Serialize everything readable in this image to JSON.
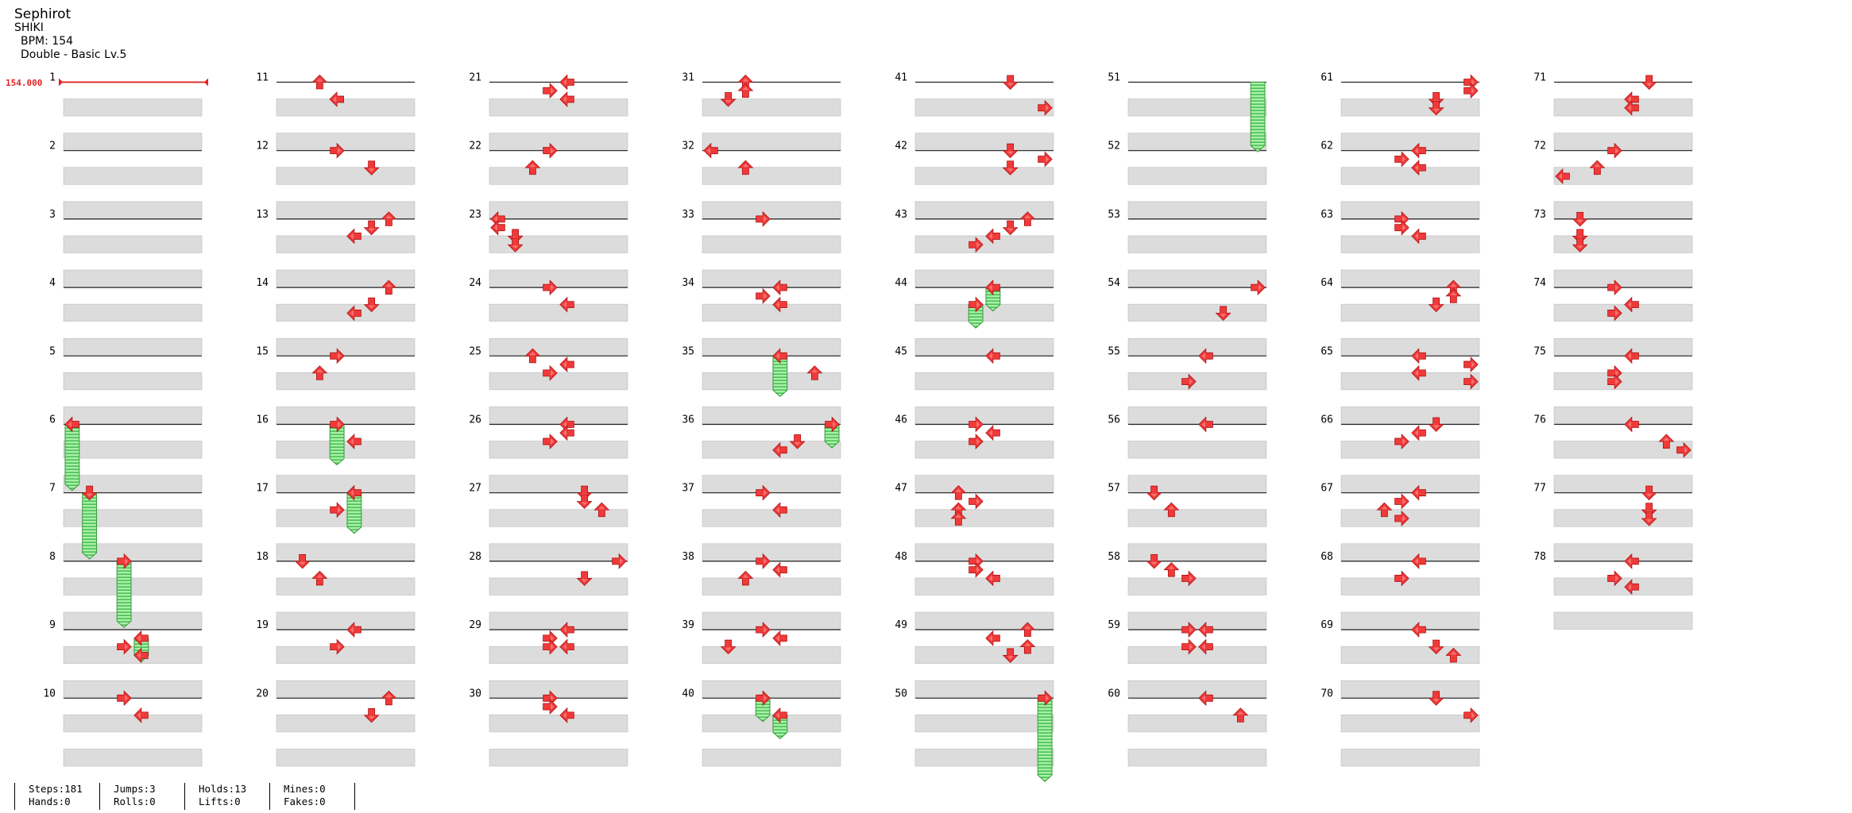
{
  "song": {
    "title": "Sephirot",
    "artist": "SHIKI",
    "bpm_text": "BPM: 154",
    "difficulty": "Double - Basic  Lv.5"
  },
  "bpm_marker": {
    "label": "154.000",
    "measure": 1
  },
  "colors": {
    "arrow": "#f03a3a",
    "arrow_outline": "#b01010",
    "hold_fill": "#a8f0a8",
    "hold_stripe": "#22aa33",
    "hold_border": "#3a9a3a",
    "row_dark": "#dcdcdc",
    "bpm_line": "#e62020"
  },
  "chart_data": {
    "type": "step-chart",
    "mode": "dance-double",
    "columns": 8,
    "total_measures": 78,
    "measures_per_column": 10,
    "rows_per_measure": 4,
    "lanes": [
      "left",
      "down",
      "up",
      "right"
    ],
    "notes": [
      {
        "m": 6,
        "r": 0,
        "lane": 0,
        "dir": "left",
        "hold": 1.75
      },
      {
        "m": 7,
        "r": 0,
        "lane": 1,
        "dir": "down",
        "hold": 1.75
      },
      {
        "m": 8,
        "r": 0,
        "lane": 3,
        "dir": "right",
        "hold": 1.75
      },
      {
        "m": 9,
        "r": 0.5,
        "lane": 4,
        "dir": "left",
        "hold": 0.5
      },
      {
        "m": 9,
        "r": 1,
        "lane": 3,
        "dir": "right"
      },
      {
        "m": 9,
        "r": 1.5,
        "lane": 4,
        "dir": "left"
      },
      {
        "m": 10,
        "r": 0,
        "lane": 3,
        "dir": "right"
      },
      {
        "m": 10,
        "r": 1,
        "lane": 4,
        "dir": "left"
      },
      {
        "m": 11,
        "r": 0,
        "lane": 2,
        "dir": "up"
      },
      {
        "m": 11,
        "r": 1,
        "lane": 3,
        "dir": "left"
      },
      {
        "m": 12,
        "r": 0,
        "lane": 3,
        "dir": "right"
      },
      {
        "m": 12,
        "r": 1,
        "lane": 5,
        "dir": "down"
      },
      {
        "m": 13,
        "r": 0,
        "lane": 6,
        "dir": "up"
      },
      {
        "m": 13,
        "r": 0.5,
        "lane": 5,
        "dir": "down"
      },
      {
        "m": 13,
        "r": 1,
        "lane": 4,
        "dir": "left"
      },
      {
        "m": 14,
        "r": 0,
        "lane": 6,
        "dir": "up"
      },
      {
        "m": 14,
        "r": 1,
        "lane": 5,
        "dir": "down"
      },
      {
        "m": 14,
        "r": 1.5,
        "lane": 4,
        "dir": "left"
      },
      {
        "m": 15,
        "r": 0,
        "lane": 3,
        "dir": "right"
      },
      {
        "m": 15,
        "r": 1,
        "lane": 2,
        "dir": "up"
      },
      {
        "m": 16,
        "r": 0,
        "lane": 3,
        "dir": "right",
        "hold": 1
      },
      {
        "m": 16,
        "r": 1,
        "lane": 4,
        "dir": "left"
      },
      {
        "m": 17,
        "r": 0,
        "lane": 4,
        "dir": "left",
        "hold": 1
      },
      {
        "m": 17,
        "r": 1,
        "lane": 3,
        "dir": "right"
      },
      {
        "m": 18,
        "r": 0,
        "lane": 1,
        "dir": "down"
      },
      {
        "m": 18,
        "r": 1,
        "lane": 2,
        "dir": "up"
      },
      {
        "m": 19,
        "r": 0,
        "lane": 4,
        "dir": "left"
      },
      {
        "m": 19,
        "r": 1,
        "lane": 3,
        "dir": "right"
      },
      {
        "m": 20,
        "r": 0,
        "lane": 6,
        "dir": "up"
      },
      {
        "m": 20,
        "r": 1,
        "lane": 5,
        "dir": "down"
      },
      {
        "m": 21,
        "r": 0,
        "lane": 4,
        "dir": "left"
      },
      {
        "m": 21,
        "r": 0.5,
        "lane": 3,
        "dir": "right"
      },
      {
        "m": 21,
        "r": 1,
        "lane": 4,
        "dir": "left"
      },
      {
        "m": 22,
        "r": 0,
        "lane": 3,
        "dir": "right"
      },
      {
        "m": 22,
        "r": 1,
        "lane": 2,
        "dir": "up"
      },
      {
        "m": 23,
        "r": 0,
        "lane": 0,
        "dir": "left"
      },
      {
        "m": 23,
        "r": 0.5,
        "lane": 0,
        "dir": "left"
      },
      {
        "m": 23,
        "r": 1,
        "lane": 1,
        "dir": "down"
      },
      {
        "m": 23,
        "r": 1.5,
        "lane": 1,
        "dir": "down"
      },
      {
        "m": 24,
        "r": 0,
        "lane": 3,
        "dir": "right"
      },
      {
        "m": 24,
        "r": 1,
        "lane": 4,
        "dir": "left"
      },
      {
        "m": 25,
        "r": 0,
        "lane": 2,
        "dir": "up"
      },
      {
        "m": 25,
        "r": 0.5,
        "lane": 4,
        "dir": "left"
      },
      {
        "m": 25,
        "r": 1,
        "lane": 3,
        "dir": "right"
      },
      {
        "m": 26,
        "r": 0,
        "lane": 4,
        "dir": "left"
      },
      {
        "m": 26,
        "r": 0.5,
        "lane": 4,
        "dir": "left"
      },
      {
        "m": 26,
        "r": 1,
        "lane": 3,
        "dir": "right"
      },
      {
        "m": 27,
        "r": 0,
        "lane": 5,
        "dir": "down"
      },
      {
        "m": 27,
        "r": 0.5,
        "lane": 5,
        "dir": "down"
      },
      {
        "m": 27,
        "r": 1,
        "lane": 6,
        "dir": "up"
      },
      {
        "m": 28,
        "r": 0,
        "lane": 7,
        "dir": "right"
      },
      {
        "m": 28,
        "r": 1,
        "lane": 5,
        "dir": "down"
      },
      {
        "m": 29,
        "r": 0,
        "lane": 4,
        "dir": "left"
      },
      {
        "m": 29,
        "r": 0.5,
        "lane": 3,
        "dir": "right"
      },
      {
        "m": 29,
        "r": 1,
        "lane": 3,
        "dir": "right"
      },
      {
        "m": 29,
        "r": 1,
        "lane": 4,
        "dir": "left"
      },
      {
        "m": 30,
        "r": 0,
        "lane": 3,
        "dir": "right"
      },
      {
        "m": 30,
        "r": 0.5,
        "lane": 3,
        "dir": "right"
      },
      {
        "m": 30,
        "r": 1,
        "lane": 4,
        "dir": "left"
      },
      {
        "m": 31,
        "r": 0,
        "lane": 2,
        "dir": "up"
      },
      {
        "m": 31,
        "r": 0.5,
        "lane": 2,
        "dir": "up"
      },
      {
        "m": 31,
        "r": 1,
        "lane": 1,
        "dir": "down"
      },
      {
        "m": 32,
        "r": 0,
        "lane": 0,
        "dir": "left"
      },
      {
        "m": 32,
        "r": 1,
        "lane": 2,
        "dir": "up"
      },
      {
        "m": 33,
        "r": 0,
        "lane": 3,
        "dir": "right"
      },
      {
        "m": 34,
        "r": 0,
        "lane": 4,
        "dir": "left"
      },
      {
        "m": 34,
        "r": 0.5,
        "lane": 3,
        "dir": "right"
      },
      {
        "m": 34,
        "r": 1,
        "lane": 4,
        "dir": "left"
      },
      {
        "m": 35,
        "r": 0,
        "lane": 4,
        "dir": "left",
        "hold": 1
      },
      {
        "m": 35,
        "r": 1,
        "lane": 6,
        "dir": "up"
      },
      {
        "m": 36,
        "r": 0,
        "lane": 7,
        "dir": "right",
        "hold": 0.5
      },
      {
        "m": 36,
        "r": 1,
        "lane": 5,
        "dir": "down"
      },
      {
        "m": 36,
        "r": 1.5,
        "lane": 4,
        "dir": "left"
      },
      {
        "m": 37,
        "r": 0,
        "lane": 3,
        "dir": "right"
      },
      {
        "m": 37,
        "r": 1,
        "lane": 4,
        "dir": "left"
      },
      {
        "m": 38,
        "r": 0,
        "lane": 3,
        "dir": "right"
      },
      {
        "m": 38,
        "r": 0.5,
        "lane": 4,
        "dir": "left"
      },
      {
        "m": 38,
        "r": 1,
        "lane": 2,
        "dir": "up"
      },
      {
        "m": 39,
        "r": 0,
        "lane": 3,
        "dir": "right"
      },
      {
        "m": 39,
        "r": 0.5,
        "lane": 4,
        "dir": "left"
      },
      {
        "m": 39,
        "r": 1,
        "lane": 1,
        "dir": "down"
      },
      {
        "m": 40,
        "r": 0,
        "lane": 3,
        "dir": "right",
        "hold": 0.5
      },
      {
        "m": 40,
        "r": 1,
        "lane": 4,
        "dir": "left",
        "hold": 0.5
      },
      {
        "m": 41,
        "r": 0,
        "lane": 5,
        "dir": "down"
      },
      {
        "m": 41,
        "r": 1.5,
        "lane": 7,
        "dir": "right"
      },
      {
        "m": 42,
        "r": 0,
        "lane": 5,
        "dir": "down"
      },
      {
        "m": 42,
        "r": 0.5,
        "lane": 7,
        "dir": "right"
      },
      {
        "m": 42,
        "r": 1,
        "lane": 5,
        "dir": "down"
      },
      {
        "m": 43,
        "r": 0,
        "lane": 6,
        "dir": "up"
      },
      {
        "m": 43,
        "r": 0.5,
        "lane": 5,
        "dir": "down"
      },
      {
        "m": 43,
        "r": 1,
        "lane": 4,
        "dir": "left"
      },
      {
        "m": 43,
        "r": 1.5,
        "lane": 3,
        "dir": "right"
      },
      {
        "m": 44,
        "r": 0,
        "lane": 4,
        "dir": "left",
        "hold": 0.5
      },
      {
        "m": 44,
        "r": 1,
        "lane": 3,
        "dir": "right",
        "hold": 0.5
      },
      {
        "m": 45,
        "r": 0,
        "lane": 4,
        "dir": "left"
      },
      {
        "m": 46,
        "r": 0,
        "lane": 3,
        "dir": "right"
      },
      {
        "m": 46,
        "r": 0.5,
        "lane": 4,
        "dir": "left"
      },
      {
        "m": 46,
        "r": 1,
        "lane": 3,
        "dir": "right"
      },
      {
        "m": 47,
        "r": 0,
        "lane": 2,
        "dir": "up"
      },
      {
        "m": 47,
        "r": 0.5,
        "lane": 3,
        "dir": "right"
      },
      {
        "m": 47,
        "r": 1,
        "lane": 2,
        "dir": "up"
      },
      {
        "m": 47,
        "r": 1.5,
        "lane": 2,
        "dir": "up"
      },
      {
        "m": 48,
        "r": 0,
        "lane": 3,
        "dir": "right"
      },
      {
        "m": 48,
        "r": 0.5,
        "lane": 3,
        "dir": "right"
      },
      {
        "m": 48,
        "r": 1,
        "lane": 4,
        "dir": "left"
      },
      {
        "m": 49,
        "r": 0,
        "lane": 6,
        "dir": "up"
      },
      {
        "m": 49,
        "r": 0.5,
        "lane": 4,
        "dir": "left"
      },
      {
        "m": 49,
        "r": 1,
        "lane": 6,
        "dir": "up"
      },
      {
        "m": 49,
        "r": 1.5,
        "lane": 5,
        "dir": "down"
      },
      {
        "m": 50,
        "r": 0,
        "lane": 7,
        "dir": "right",
        "hold": 2.25
      },
      {
        "m": 51,
        "r": 0,
        "lane": 7,
        "dir": "none",
        "hold": 1.85
      },
      {
        "m": 54,
        "r": 0,
        "lane": 7,
        "dir": "right"
      },
      {
        "m": 54,
        "r": 1.5,
        "lane": 5,
        "dir": "down"
      },
      {
        "m": 55,
        "r": 0,
        "lane": 4,
        "dir": "left"
      },
      {
        "m": 55,
        "r": 1.5,
        "lane": 3,
        "dir": "right"
      },
      {
        "m": 56,
        "r": 0,
        "lane": 4,
        "dir": "left"
      },
      {
        "m": 57,
        "r": 0,
        "lane": 1,
        "dir": "down"
      },
      {
        "m": 57,
        "r": 1,
        "lane": 2,
        "dir": "up"
      },
      {
        "m": 58,
        "r": 0,
        "lane": 1,
        "dir": "down"
      },
      {
        "m": 58,
        "r": 0.5,
        "lane": 2,
        "dir": "up"
      },
      {
        "m": 58,
        "r": 1,
        "lane": 3,
        "dir": "right"
      },
      {
        "m": 59,
        "r": 0,
        "lane": 3,
        "dir": "right"
      },
      {
        "m": 59,
        "r": 0,
        "lane": 4,
        "dir": "left"
      },
      {
        "m": 59,
        "r": 1,
        "lane": 3,
        "dir": "right"
      },
      {
        "m": 59,
        "r": 1,
        "lane": 4,
        "dir": "left"
      },
      {
        "m": 60,
        "r": 0,
        "lane": 4,
        "dir": "left"
      },
      {
        "m": 60,
        "r": 1,
        "lane": 6,
        "dir": "up"
      },
      {
        "m": 61,
        "r": 0,
        "lane": 7,
        "dir": "right"
      },
      {
        "m": 61,
        "r": 0.5,
        "lane": 7,
        "dir": "right"
      },
      {
        "m": 61,
        "r": 1,
        "lane": 5,
        "dir": "down"
      },
      {
        "m": 61,
        "r": 1.5,
        "lane": 5,
        "dir": "down"
      },
      {
        "m": 62,
        "r": 0,
        "lane": 4,
        "dir": "left"
      },
      {
        "m": 62,
        "r": 0.5,
        "lane": 3,
        "dir": "right"
      },
      {
        "m": 62,
        "r": 1,
        "lane": 4,
        "dir": "left"
      },
      {
        "m": 63,
        "r": 0,
        "lane": 3,
        "dir": "right"
      },
      {
        "m": 63,
        "r": 0.5,
        "lane": 3,
        "dir": "right"
      },
      {
        "m": 63,
        "r": 1,
        "lane": 4,
        "dir": "left"
      },
      {
        "m": 64,
        "r": 0,
        "lane": 6,
        "dir": "up"
      },
      {
        "m": 64,
        "r": 0.5,
        "lane": 6,
        "dir": "up"
      },
      {
        "m": 64,
        "r": 1,
        "lane": 5,
        "dir": "down"
      },
      {
        "m": 65,
        "r": 0,
        "lane": 4,
        "dir": "left"
      },
      {
        "m": 65,
        "r": 0.5,
        "lane": 7,
        "dir": "right"
      },
      {
        "m": 65,
        "r": 1,
        "lane": 4,
        "dir": "left"
      },
      {
        "m": 65,
        "r": 1.5,
        "lane": 7,
        "dir": "right"
      },
      {
        "m": 66,
        "r": 0,
        "lane": 5,
        "dir": "down"
      },
      {
        "m": 66,
        "r": 0.5,
        "lane": 4,
        "dir": "left"
      },
      {
        "m": 66,
        "r": 1,
        "lane": 3,
        "dir": "right"
      },
      {
        "m": 67,
        "r": 0,
        "lane": 4,
        "dir": "left"
      },
      {
        "m": 67,
        "r": 0.5,
        "lane": 3,
        "dir": "right"
      },
      {
        "m": 67,
        "r": 1,
        "lane": 2,
        "dir": "up"
      },
      {
        "m": 67,
        "r": 1.5,
        "lane": 3,
        "dir": "right"
      },
      {
        "m": 68,
        "r": 0,
        "lane": 4,
        "dir": "left"
      },
      {
        "m": 68,
        "r": 1,
        "lane": 3,
        "dir": "right"
      },
      {
        "m": 69,
        "r": 0,
        "lane": 4,
        "dir": "left"
      },
      {
        "m": 69,
        "r": 1,
        "lane": 5,
        "dir": "down"
      },
      {
        "m": 69,
        "r": 1.5,
        "lane": 6,
        "dir": "up"
      },
      {
        "m": 70,
        "r": 0,
        "lane": 5,
        "dir": "down"
      },
      {
        "m": 70,
        "r": 1,
        "lane": 7,
        "dir": "right"
      },
      {
        "m": 71,
        "r": 0,
        "lane": 5,
        "dir": "down"
      },
      {
        "m": 71,
        "r": 1,
        "lane": 4,
        "dir": "left"
      },
      {
        "m": 71,
        "r": 1.5,
        "lane": 4,
        "dir": "left"
      },
      {
        "m": 72,
        "r": 0,
        "lane": 3,
        "dir": "right"
      },
      {
        "m": 72,
        "r": 1,
        "lane": 2,
        "dir": "up"
      },
      {
        "m": 72,
        "r": 1.5,
        "lane": 0,
        "dir": "left"
      },
      {
        "m": 73,
        "r": 0,
        "lane": 1,
        "dir": "down"
      },
      {
        "m": 73,
        "r": 1,
        "lane": 1,
        "dir": "down"
      },
      {
        "m": 73,
        "r": 1.5,
        "lane": 1,
        "dir": "down"
      },
      {
        "m": 74,
        "r": 0,
        "lane": 3,
        "dir": "right"
      },
      {
        "m": 74,
        "r": 1,
        "lane": 4,
        "dir": "left"
      },
      {
        "m": 74,
        "r": 1.5,
        "lane": 3,
        "dir": "right"
      },
      {
        "m": 75,
        "r": 0,
        "lane": 4,
        "dir": "left"
      },
      {
        "m": 75,
        "r": 1,
        "lane": 3,
        "dir": "right"
      },
      {
        "m": 75,
        "r": 1.5,
        "lane": 3,
        "dir": "right"
      },
      {
        "m": 76,
        "r": 0,
        "lane": 4,
        "dir": "left"
      },
      {
        "m": 76,
        "r": 1,
        "lane": 6,
        "dir": "up"
      },
      {
        "m": 76,
        "r": 1.5,
        "lane": 7,
        "dir": "right"
      },
      {
        "m": 77,
        "r": 0,
        "lane": 5,
        "dir": "down"
      },
      {
        "m": 77,
        "r": 1,
        "lane": 5,
        "dir": "down"
      },
      {
        "m": 77,
        "r": 1.5,
        "lane": 5,
        "dir": "down"
      },
      {
        "m": 78,
        "r": 0,
        "lane": 4,
        "dir": "left"
      },
      {
        "m": 78,
        "r": 1,
        "lane": 3,
        "dir": "right"
      },
      {
        "m": 78,
        "r": 1.5,
        "lane": 4,
        "dir": "left"
      }
    ]
  },
  "stats": [
    {
      "top": "Steps:181",
      "bottom": "Hands:0"
    },
    {
      "top": "Jumps:3",
      "bottom": "Rolls:0"
    },
    {
      "top": "Holds:13",
      "bottom": "Lifts:0"
    },
    {
      "top": "Mines:0",
      "bottom": "Fakes:0"
    }
  ]
}
